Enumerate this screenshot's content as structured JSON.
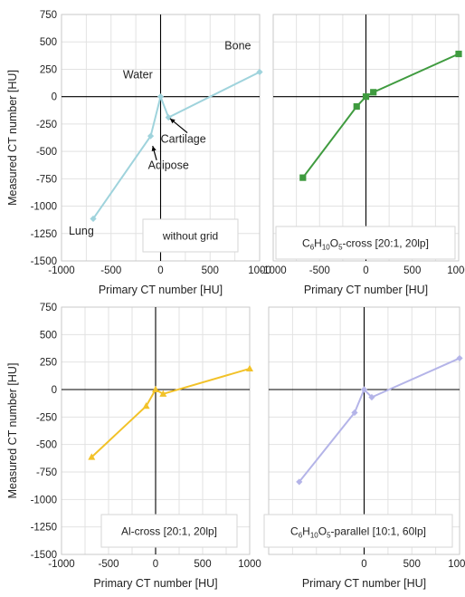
{
  "ylabel_common": "Measured CT number [HU]",
  "chart_data": [
    {
      "type": "line",
      "xlabel": "Primary CT number [HU]",
      "ylabel": "Measured CT number [HU]",
      "xlim": [
        -1000,
        1000
      ],
      "ylim": [
        -1500,
        750
      ],
      "x_ticks": [
        "-1000",
        "-500",
        "0",
        "500",
        "1000"
      ],
      "y_ticks": [
        "750",
        "500",
        "250",
        "0",
        "-250",
        "-500",
        "-750",
        "-1000",
        "-1250",
        "-1500"
      ],
      "legend": "without grid",
      "grid": true,
      "series": [
        {
          "color": "#9fd3dc",
          "marker": "diamond",
          "x": [
            -680,
            -100,
            0,
            80,
            1000
          ],
          "y": [
            -1115,
            -360,
            0,
            -190,
            225
          ]
        }
      ],
      "annotations": [
        {
          "text": "Bone",
          "x": 780,
          "y": 430
        },
        {
          "text": "Water",
          "x": -230,
          "y": 165
        },
        {
          "text": "Cartilage",
          "x": 230,
          "y": -420
        },
        {
          "text": "Adipose",
          "x": 80,
          "y": -660
        },
        {
          "text": "Lung",
          "x": -800,
          "y": -1260
        }
      ]
    },
    {
      "type": "line",
      "xlabel": "Primary CT number [HU]",
      "ylabel": "",
      "xlim": [
        -1000,
        1000
      ],
      "ylim": [
        -1500,
        750
      ],
      "x_ticks": [
        "-1000",
        "-500",
        "0",
        "500",
        "1000"
      ],
      "y_ticks": [],
      "legend": "C6H10O5-cross [20:1, 20lp]",
      "legend_parts": [
        "C",
        "6",
        "H",
        "10",
        "O",
        "5",
        "-cross [20:1, 20lp]"
      ],
      "grid": true,
      "series": [
        {
          "color": "#3f9b3f",
          "marker": "square",
          "x": [
            -680,
            -100,
            0,
            80,
            1000
          ],
          "y": [
            -740,
            -90,
            0,
            40,
            390
          ]
        }
      ]
    },
    {
      "type": "line",
      "xlabel": "Primary CT number [HU]",
      "ylabel": "Measured CT number [HU]",
      "xlim": [
        -1000,
        1000
      ],
      "ylim": [
        -1500,
        750
      ],
      "x_ticks": [
        "-1000",
        "-500",
        "0",
        "500",
        "1000"
      ],
      "y_ticks": [
        "750",
        "500",
        "250",
        "0",
        "-250",
        "-500",
        "-750",
        "-1000",
        "-1250",
        "-1500"
      ],
      "legend": "Al-cross [20:1, 20lp]",
      "grid": true,
      "series": [
        {
          "color": "#f2c229",
          "marker": "triangle",
          "x": [
            -680,
            -100,
            0,
            80,
            1000
          ],
          "y": [
            -615,
            -150,
            0,
            -40,
            190
          ]
        }
      ]
    },
    {
      "type": "line",
      "xlabel": "Primary CT number [HU]",
      "ylabel": "",
      "xlim": [
        -1000,
        1000
      ],
      "ylim": [
        -1500,
        750
      ],
      "x_ticks": [
        "0",
        "500",
        "1000"
      ],
      "y_ticks": [],
      "legend": "C6H10O5-parallel [10:1, 60lp]",
      "legend_parts": [
        "C",
        "6",
        "H",
        "10",
        "O",
        "5",
        "-parallel [10:1, 60lp]"
      ],
      "grid": true,
      "series": [
        {
          "color": "#b4b4e8",
          "marker": "diamond",
          "x": [
            -680,
            -100,
            0,
            80,
            1000
          ],
          "y": [
            -840,
            -210,
            0,
            -70,
            285
          ]
        }
      ]
    }
  ]
}
